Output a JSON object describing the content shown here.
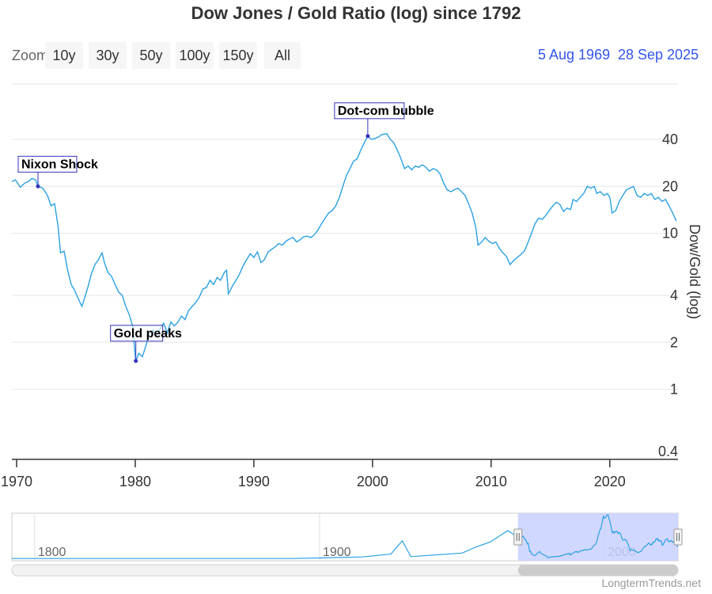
{
  "title": "Dow Jones / Gold Ratio (log) since 1792",
  "zoom": {
    "label": "Zoom",
    "buttons": [
      "10y",
      "30y",
      "50y",
      "100y",
      "150y",
      "All"
    ]
  },
  "range": {
    "from": "5 Aug 1969",
    "to": "28 Sep 2025"
  },
  "credit": "LongtermTrends.net",
  "colors": {
    "line": "#2aa1e4",
    "annotation": "#3333bb",
    "navigator_mask": "#c9d1ff",
    "range_text": "#3355ee"
  },
  "chart_data": {
    "type": "line",
    "title": "Dow Jones / Gold Ratio (log) since 1792",
    "ylabel": "Dow/Gold (log)",
    "y_scale": "log",
    "xlim": [
      1969.6,
      2025.75
    ],
    "ylim": [
      0.4,
      90
    ],
    "y_ticks": [
      {
        "value": 0.4,
        "label": "0.4"
      },
      {
        "value": 1,
        "label": "1"
      },
      {
        "value": 2,
        "label": "2"
      },
      {
        "value": 4,
        "label": "4"
      },
      {
        "value": 10,
        "label": "10"
      },
      {
        "value": 20,
        "label": "20"
      },
      {
        "value": 40,
        "label": "40"
      }
    ],
    "x_ticks": [
      {
        "value": 1970,
        "label": "1970"
      },
      {
        "value": 1980,
        "label": "1980"
      },
      {
        "value": 1990,
        "label": "1990"
      },
      {
        "value": 2000,
        "label": "2000"
      },
      {
        "value": 2010,
        "label": "2010"
      },
      {
        "value": 2020,
        "label": "2020"
      }
    ],
    "grid": true,
    "series": [
      {
        "points": [
          [
            1969.6,
            21.5
          ],
          [
            1969.9,
            22.0
          ],
          [
            1970.3,
            19.8
          ],
          [
            1970.7,
            21.0
          ],
          [
            1971.0,
            21.5
          ],
          [
            1971.3,
            22.5
          ],
          [
            1971.6,
            22.0
          ],
          [
            1971.8,
            20.0
          ],
          [
            1972.2,
            19.5
          ],
          [
            1972.6,
            17.5
          ],
          [
            1972.9,
            15.0
          ],
          [
            1973.2,
            15.5
          ],
          [
            1973.5,
            11.0
          ],
          [
            1973.7,
            7.5
          ],
          [
            1974.0,
            7.7
          ],
          [
            1974.3,
            5.8
          ],
          [
            1974.6,
            4.7
          ],
          [
            1974.9,
            4.3
          ],
          [
            1975.2,
            3.8
          ],
          [
            1975.5,
            3.4
          ],
          [
            1975.8,
            4.0
          ],
          [
            1976.0,
            4.5
          ],
          [
            1976.3,
            5.5
          ],
          [
            1976.6,
            6.3
          ],
          [
            1976.9,
            6.8
          ],
          [
            1977.2,
            7.5
          ],
          [
            1977.4,
            6.5
          ],
          [
            1977.7,
            5.6
          ],
          [
            1978.0,
            5.3
          ],
          [
            1978.3,
            4.7
          ],
          [
            1978.6,
            4.2
          ],
          [
            1978.9,
            4.0
          ],
          [
            1979.2,
            3.4
          ],
          [
            1979.5,
            3.0
          ],
          [
            1979.8,
            2.5
          ],
          [
            1979.95,
            1.8
          ],
          [
            1980.05,
            1.52
          ],
          [
            1980.3,
            1.7
          ],
          [
            1980.6,
            1.62
          ],
          [
            1980.9,
            1.9
          ],
          [
            1981.2,
            2.3
          ],
          [
            1981.5,
            2.4
          ],
          [
            1981.8,
            2.2
          ],
          [
            1982.1,
            2.45
          ],
          [
            1982.4,
            2.65
          ],
          [
            1982.7,
            2.3
          ],
          [
            1983.0,
            2.7
          ],
          [
            1983.3,
            2.55
          ],
          [
            1983.6,
            2.7
          ],
          [
            1983.9,
            2.95
          ],
          [
            1984.2,
            2.8
          ],
          [
            1984.5,
            3.2
          ],
          [
            1984.8,
            3.4
          ],
          [
            1985.1,
            3.6
          ],
          [
            1985.4,
            3.9
          ],
          [
            1985.7,
            4.4
          ],
          [
            1986.0,
            4.5
          ],
          [
            1986.3,
            5.0
          ],
          [
            1986.6,
            4.7
          ],
          [
            1986.9,
            5.2
          ],
          [
            1987.2,
            5.0
          ],
          [
            1987.5,
            5.6
          ],
          [
            1987.7,
            5.8
          ],
          [
            1987.85,
            4.1
          ],
          [
            1988.2,
            4.6
          ],
          [
            1988.5,
            5.0
          ],
          [
            1988.8,
            5.5
          ],
          [
            1989.1,
            6.2
          ],
          [
            1989.4,
            6.8
          ],
          [
            1989.7,
            7.4
          ],
          [
            1990.0,
            7.0
          ],
          [
            1990.3,
            7.6
          ],
          [
            1990.6,
            6.5
          ],
          [
            1990.9,
            6.8
          ],
          [
            1991.2,
            7.6
          ],
          [
            1991.5,
            7.9
          ],
          [
            1991.8,
            8.2
          ],
          [
            1992.1,
            8.6
          ],
          [
            1992.4,
            8.4
          ],
          [
            1992.7,
            8.9
          ],
          [
            1993.0,
            9.2
          ],
          [
            1993.3,
            9.4
          ],
          [
            1993.6,
            8.8
          ],
          [
            1993.9,
            9.1
          ],
          [
            1994.2,
            9.5
          ],
          [
            1994.5,
            9.6
          ],
          [
            1994.8,
            9.4
          ],
          [
            1995.1,
            9.8
          ],
          [
            1995.4,
            10.5
          ],
          [
            1995.7,
            11.5
          ],
          [
            1996.0,
            12.5
          ],
          [
            1996.3,
            13.5
          ],
          [
            1996.6,
            14.0
          ],
          [
            1996.9,
            15.0
          ],
          [
            1997.2,
            17.0
          ],
          [
            1997.5,
            20.0
          ],
          [
            1997.8,
            23.5
          ],
          [
            1998.1,
            26.0
          ],
          [
            1998.4,
            29.0
          ],
          [
            1998.7,
            30.0
          ],
          [
            1999.0,
            34.0
          ],
          [
            1999.3,
            38.0
          ],
          [
            1999.6,
            42.0
          ],
          [
            1999.9,
            40.0
          ],
          [
            2000.2,
            40.5
          ],
          [
            2000.5,
            41.5
          ],
          [
            2000.8,
            43.0
          ],
          [
            2001.2,
            43.5
          ],
          [
            2001.5,
            40.0
          ],
          [
            2001.8,
            38.0
          ],
          [
            2002.1,
            34.0
          ],
          [
            2002.4,
            30.0
          ],
          [
            2002.7,
            26.0
          ],
          [
            2003.0,
            27.0
          ],
          [
            2003.3,
            25.5
          ],
          [
            2003.6,
            27.0
          ],
          [
            2003.9,
            26.5
          ],
          [
            2004.2,
            27.5
          ],
          [
            2004.5,
            26.5
          ],
          [
            2004.8,
            25.0
          ],
          [
            2005.1,
            26.0
          ],
          [
            2005.4,
            25.5
          ],
          [
            2005.7,
            24.0
          ],
          [
            2006.0,
            21.0
          ],
          [
            2006.3,
            19.0
          ],
          [
            2006.6,
            18.5
          ],
          [
            2006.9,
            19.0
          ],
          [
            2007.2,
            19.5
          ],
          [
            2007.5,
            18.5
          ],
          [
            2007.8,
            17.5
          ],
          [
            2008.1,
            15.5
          ],
          [
            2008.4,
            13.5
          ],
          [
            2008.7,
            11.0
          ],
          [
            2008.9,
            8.4
          ],
          [
            2009.2,
            8.8
          ],
          [
            2009.5,
            9.4
          ],
          [
            2009.8,
            8.9
          ],
          [
            2010.1,
            8.6
          ],
          [
            2010.4,
            8.8
          ],
          [
            2010.7,
            8.0
          ],
          [
            2011.0,
            7.5
          ],
          [
            2011.3,
            7.1
          ],
          [
            2011.6,
            6.3
          ],
          [
            2011.9,
            6.7
          ],
          [
            2012.2,
            7.0
          ],
          [
            2012.5,
            7.3
          ],
          [
            2012.8,
            7.7
          ],
          [
            2013.1,
            8.7
          ],
          [
            2013.4,
            10.0
          ],
          [
            2013.7,
            11.5
          ],
          [
            2014.0,
            12.5
          ],
          [
            2014.3,
            12.3
          ],
          [
            2014.6,
            13.0
          ],
          [
            2014.9,
            14.0
          ],
          [
            2015.2,
            15.0
          ],
          [
            2015.5,
            15.8
          ],
          [
            2015.8,
            15.3
          ],
          [
            2016.1,
            13.8
          ],
          [
            2016.4,
            14.5
          ],
          [
            2016.7,
            14.2
          ],
          [
            2016.9,
            16.5
          ],
          [
            2017.2,
            16.0
          ],
          [
            2017.5,
            17.0
          ],
          [
            2017.8,
            18.0
          ],
          [
            2018.1,
            20.0
          ],
          [
            2018.4,
            19.5
          ],
          [
            2018.7,
            20.0
          ],
          [
            2018.9,
            18.0
          ],
          [
            2019.2,
            18.5
          ],
          [
            2019.5,
            17.5
          ],
          [
            2019.8,
            18.0
          ],
          [
            2020.0,
            17.0
          ],
          [
            2020.2,
            13.5
          ],
          [
            2020.5,
            14.0
          ],
          [
            2020.8,
            16.0
          ],
          [
            2021.1,
            17.5
          ],
          [
            2021.4,
            19.0
          ],
          [
            2021.7,
            19.5
          ],
          [
            2022.0,
            20.0
          ],
          [
            2022.3,
            17.5
          ],
          [
            2022.6,
            17.0
          ],
          [
            2022.9,
            18.0
          ],
          [
            2023.2,
            17.5
          ],
          [
            2023.5,
            18.0
          ],
          [
            2023.8,
            16.5
          ],
          [
            2024.1,
            17.0
          ],
          [
            2024.4,
            16.0
          ],
          [
            2024.7,
            16.5
          ],
          [
            2025.0,
            15.0
          ],
          [
            2025.3,
            13.5
          ],
          [
            2025.6,
            12.0
          ]
        ]
      }
    ],
    "annotations": [
      {
        "x": 1971.8,
        "y": 20.0,
        "text": "Nixon Shock"
      },
      {
        "x": 1980.05,
        "y": 1.52,
        "text": "Gold peaks"
      },
      {
        "x": 1999.6,
        "y": 42.0,
        "text": "Dot-com bubble"
      }
    ],
    "navigator": {
      "xlim": [
        1792,
        2025.75
      ],
      "ticks": [
        {
          "value": 1800,
          "label": "1800"
        },
        {
          "value": 1900,
          "label": "1900"
        },
        {
          "value": 2000,
          "label": "2000"
        }
      ],
      "selected": [
        1969.6,
        2025.75
      ]
    }
  }
}
